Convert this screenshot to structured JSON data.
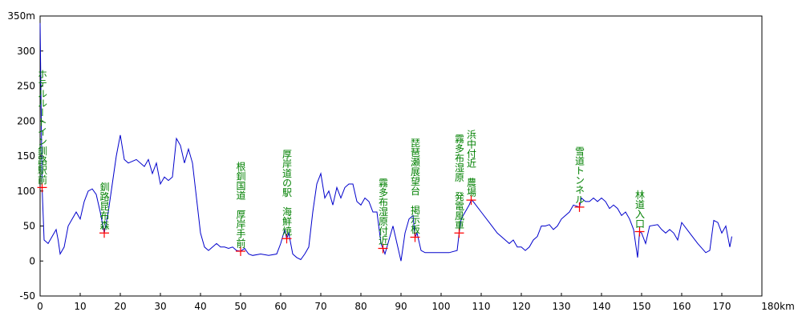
{
  "chart_data": {
    "type": "line",
    "x": [
      0,
      0.5,
      1,
      2,
      3,
      4,
      4.5,
      5,
      6,
      7,
      8,
      9,
      10,
      11,
      12,
      13,
      14,
      15,
      16,
      17,
      18,
      19,
      20,
      21,
      22,
      24,
      26,
      27,
      28,
      29,
      30,
      31,
      32,
      33,
      34,
      35,
      36,
      37,
      38,
      39,
      40,
      41,
      42,
      43,
      44,
      45,
      46,
      47,
      48,
      49,
      50,
      51,
      52,
      53,
      55,
      57,
      59,
      60,
      61,
      61.5,
      62,
      63,
      64,
      65,
      66,
      67,
      68,
      69,
      70,
      71,
      72,
      73,
      74,
      75,
      76,
      77,
      78,
      79,
      80,
      81,
      82,
      83,
      84,
      85,
      85.5,
      86,
      87,
      88,
      89,
      90,
      91,
      92,
      93,
      93.5,
      94,
      95,
      96,
      98,
      100,
      102,
      104,
      104.5,
      105,
      106,
      107,
      107.5,
      108,
      110,
      112,
      114,
      116,
      117,
      118,
      119,
      120,
      121,
      122,
      123,
      124,
      125,
      126,
      127,
      128,
      129,
      130,
      131,
      132,
      133,
      134.5,
      135,
      136,
      137,
      138,
      139,
      140,
      141,
      142,
      143,
      144,
      145,
      146,
      147,
      148,
      149,
      149.5,
      150,
      151,
      152,
      154,
      155,
      156,
      157,
      158,
      159,
      160,
      162,
      164,
      166,
      167,
      168,
      169,
      170,
      171,
      172,
      172.5
    ],
    "series": [
      {
        "color": "#0000cc",
        "values": [
          340,
          105,
          30,
          25,
          35,
          45,
          30,
          10,
          20,
          50,
          60,
          70,
          60,
          85,
          100,
          103,
          95,
          70,
          40,
          70,
          110,
          150,
          180,
          145,
          140,
          145,
          135,
          145,
          125,
          140,
          110,
          120,
          115,
          120,
          175,
          165,
          140,
          160,
          140,
          90,
          40,
          20,
          15,
          20,
          25,
          20,
          20,
          18,
          20,
          15,
          14,
          18,
          10,
          8,
          10,
          8,
          10,
          25,
          45,
          32,
          40,
          10,
          5,
          2,
          10,
          20,
          70,
          110,
          125,
          90,
          100,
          80,
          105,
          90,
          105,
          110,
          110,
          85,
          80,
          90,
          85,
          70,
          70,
          25,
          18,
          10,
          30,
          50,
          25,
          0,
          40,
          60,
          65,
          34,
          40,
          15,
          12,
          12,
          12,
          12,
          15,
          40,
          60,
          70,
          80,
          87,
          85,
          70,
          55,
          40,
          30,
          25,
          30,
          20,
          20,
          15,
          20,
          30,
          35,
          50,
          50,
          52,
          45,
          50,
          60,
          65,
          70,
          80,
          77,
          90,
          85,
          85,
          90,
          85,
          90,
          85,
          75,
          80,
          75,
          65,
          70,
          60,
          45,
          5,
          42,
          40,
          25,
          50,
          52,
          45,
          40,
          45,
          40,
          30,
          55,
          40,
          25,
          12,
          15,
          58,
          55,
          40,
          50,
          20,
          35
        ]
      }
    ],
    "annotations": [
      {
        "text": "ホテルルートイン釧路駅前",
        "x": 0.5,
        "y": 105
      },
      {
        "text": "釧路昆布森",
        "x": 16,
        "y": 40
      },
      {
        "text": "根釧国道　厚岸手前",
        "x": 50,
        "y": 14
      },
      {
        "text": "厚岸道の駅　海鮮焼",
        "x": 61.5,
        "y": 32
      },
      {
        "text": "霧多布湿原付近",
        "x": 85.5,
        "y": 18
      },
      {
        "text": "琵琶瀬展望台　掲示板",
        "x": 93.5,
        "y": 34
      },
      {
        "text": "霧多布湿原　発電風車",
        "x": 104.5,
        "y": 40
      },
      {
        "text": "浜中付近　農場",
        "x": 107.5,
        "y": 87
      },
      {
        "text": "雪道トンネル",
        "x": 134.5,
        "y": 77
      },
      {
        "text": "林道入口",
        "x": 149.5,
        "y": 42
      }
    ],
    "annotation_color": "#008000",
    "marker_color": "#ff0000",
    "xlim": [
      0,
      180
    ],
    "xticks": [
      0,
      10,
      20,
      30,
      40,
      50,
      60,
      70,
      80,
      90,
      100,
      110,
      120,
      130,
      140,
      150,
      160,
      170,
      {
        "value": 180,
        "label": "180km"
      }
    ],
    "ylim": [
      -50,
      350
    ],
    "yticks": [
      -50,
      0,
      50,
      100,
      150,
      200,
      250,
      300,
      {
        "value": 350,
        "label": "350m"
      }
    ],
    "grid": false
  }
}
